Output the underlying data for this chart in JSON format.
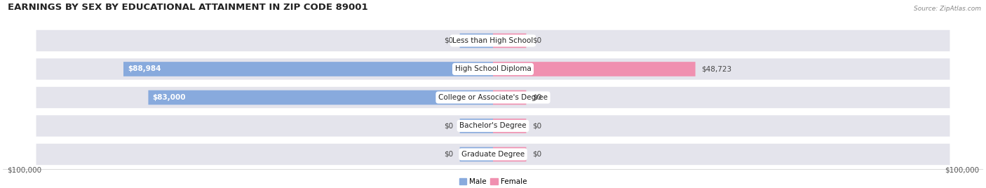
{
  "title": "EARNINGS BY SEX BY EDUCATIONAL ATTAINMENT IN ZIP CODE 89001",
  "source": "Source: ZipAtlas.com",
  "categories": [
    "Less than High School",
    "High School Diploma",
    "College or Associate's Degree",
    "Bachelor's Degree",
    "Graduate Degree"
  ],
  "male_values": [
    0,
    88984,
    83000,
    0,
    0
  ],
  "female_values": [
    0,
    48723,
    0,
    0,
    0
  ],
  "male_labels": [
    "$0",
    "$88,984",
    "$83,000",
    "$0",
    "$0"
  ],
  "female_labels": [
    "$0",
    "$48,723",
    "$0",
    "$0",
    "$0"
  ],
  "male_color": "#88aadd",
  "female_color": "#f090b0",
  "bar_bg_color": "#e4e4ec",
  "max_value": 100000,
  "stub_value": 8000,
  "xlabel_left": "$100,000",
  "xlabel_right": "$100,000",
  "legend_male": "Male",
  "legend_female": "Female",
  "title_fontsize": 9.5,
  "label_fontsize": 7.5,
  "cat_fontsize": 7.5,
  "tick_fontsize": 7.5,
  "source_fontsize": 6.5
}
